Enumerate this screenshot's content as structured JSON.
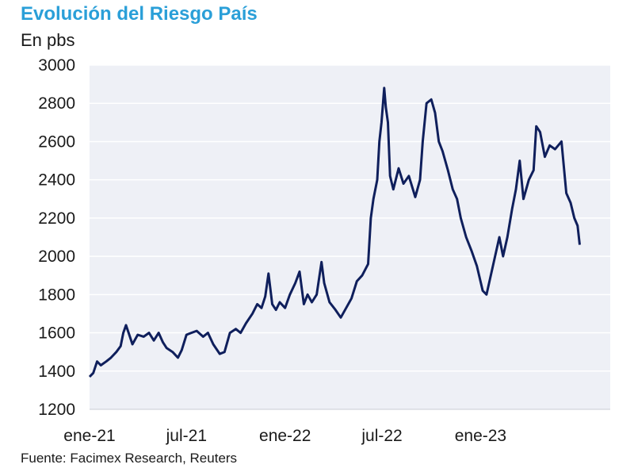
{
  "header": {
    "title": "Evolución del Riesgo País",
    "subtitle": "En pbs"
  },
  "footer": {
    "source": "Fuente: Facimex Research, Reuters"
  },
  "colors": {
    "title": "#2a9fd8",
    "line": "#0f1f5c",
    "plot_background": "#eef0f6",
    "gridline": "#ffffff"
  },
  "chart_data": {
    "type": "line",
    "title": "Evolución del Riesgo País",
    "subtitle": "En pbs",
    "xlabel": "",
    "ylabel": "",
    "ylim": [
      1200,
      3000
    ],
    "yticks": [
      1200,
      1400,
      1600,
      1800,
      2000,
      2200,
      2400,
      2600,
      2800,
      3000
    ],
    "xticks": [
      {
        "label": "ene-21",
        "date": "2021-01-01"
      },
      {
        "label": "jul-21",
        "date": "2021-07-01"
      },
      {
        "label": "ene-22",
        "date": "2022-01-01"
      },
      {
        "label": "jul-22",
        "date": "2022-07-01"
      },
      {
        "label": "ene-23",
        "date": "2023-01-01"
      }
    ],
    "xlim": [
      "2021-01-01",
      "2023-08-31"
    ],
    "grid": true,
    "legend": "none",
    "series": [
      {
        "name": "",
        "points": [
          [
            "2021-01-01",
            1370
          ],
          [
            "2021-01-08",
            1390
          ],
          [
            "2021-01-15",
            1450
          ],
          [
            "2021-01-22",
            1430
          ],
          [
            "2021-02-01",
            1450
          ],
          [
            "2021-02-10",
            1470
          ],
          [
            "2021-02-20",
            1500
          ],
          [
            "2021-02-28",
            1530
          ],
          [
            "2021-03-05",
            1600
          ],
          [
            "2021-03-10",
            1640
          ],
          [
            "2021-03-15",
            1600
          ],
          [
            "2021-03-22",
            1540
          ],
          [
            "2021-04-01",
            1590
          ],
          [
            "2021-04-12",
            1580
          ],
          [
            "2021-04-22",
            1600
          ],
          [
            "2021-05-01",
            1560
          ],
          [
            "2021-05-10",
            1600
          ],
          [
            "2021-05-18",
            1550
          ],
          [
            "2021-05-25",
            1520
          ],
          [
            "2021-06-05",
            1500
          ],
          [
            "2021-06-15",
            1470
          ],
          [
            "2021-06-22",
            1510
          ],
          [
            "2021-07-01",
            1590
          ],
          [
            "2021-07-10",
            1600
          ],
          [
            "2021-07-20",
            1610
          ],
          [
            "2021-08-01",
            1580
          ],
          [
            "2021-08-10",
            1600
          ],
          [
            "2021-08-20",
            1540
          ],
          [
            "2021-09-01",
            1490
          ],
          [
            "2021-09-10",
            1500
          ],
          [
            "2021-09-20",
            1600
          ],
          [
            "2021-10-01",
            1620
          ],
          [
            "2021-10-10",
            1600
          ],
          [
            "2021-10-20",
            1650
          ],
          [
            "2021-11-01",
            1700
          ],
          [
            "2021-11-10",
            1750
          ],
          [
            "2021-11-18",
            1730
          ],
          [
            "2021-11-25",
            1790
          ],
          [
            "2021-12-01",
            1910
          ],
          [
            "2021-12-08",
            1750
          ],
          [
            "2021-12-15",
            1720
          ],
          [
            "2021-12-22",
            1760
          ],
          [
            "2022-01-01",
            1730
          ],
          [
            "2022-01-10",
            1800
          ],
          [
            "2022-01-20",
            1860
          ],
          [
            "2022-01-28",
            1920
          ],
          [
            "2022-02-05",
            1750
          ],
          [
            "2022-02-12",
            1800
          ],
          [
            "2022-02-20",
            1760
          ],
          [
            "2022-03-01",
            1800
          ],
          [
            "2022-03-10",
            1970
          ],
          [
            "2022-03-15",
            1860
          ],
          [
            "2022-03-25",
            1760
          ],
          [
            "2022-04-05",
            1720
          ],
          [
            "2022-04-15",
            1680
          ],
          [
            "2022-04-25",
            1730
          ],
          [
            "2022-05-05",
            1780
          ],
          [
            "2022-05-15",
            1870
          ],
          [
            "2022-05-25",
            1900
          ],
          [
            "2022-06-05",
            1960
          ],
          [
            "2022-06-10",
            2200
          ],
          [
            "2022-06-15",
            2300
          ],
          [
            "2022-06-22",
            2400
          ],
          [
            "2022-06-26",
            2600
          ],
          [
            "2022-06-30",
            2700
          ],
          [
            "2022-07-05",
            2880
          ],
          [
            "2022-07-08",
            2780
          ],
          [
            "2022-07-12",
            2700
          ],
          [
            "2022-07-16",
            2420
          ],
          [
            "2022-07-22",
            2350
          ],
          [
            "2022-08-01",
            2460
          ],
          [
            "2022-08-10",
            2380
          ],
          [
            "2022-08-20",
            2420
          ],
          [
            "2022-09-01",
            2310
          ],
          [
            "2022-09-10",
            2400
          ],
          [
            "2022-09-15",
            2600
          ],
          [
            "2022-09-22",
            2800
          ],
          [
            "2022-10-01",
            2820
          ],
          [
            "2022-10-08",
            2750
          ],
          [
            "2022-10-15",
            2600
          ],
          [
            "2022-10-22",
            2550
          ],
          [
            "2022-11-01",
            2450
          ],
          [
            "2022-11-10",
            2350
          ],
          [
            "2022-11-18",
            2300
          ],
          [
            "2022-11-25",
            2200
          ],
          [
            "2022-12-05",
            2100
          ],
          [
            "2022-12-15",
            2030
          ],
          [
            "2022-12-25",
            1950
          ],
          [
            "2023-01-05",
            1820
          ],
          [
            "2023-01-12",
            1800
          ],
          [
            "2023-01-20",
            1900
          ],
          [
            "2023-01-28",
            2000
          ],
          [
            "2023-02-05",
            2100
          ],
          [
            "2023-02-12",
            2000
          ],
          [
            "2023-02-20",
            2100
          ],
          [
            "2023-03-01",
            2250
          ],
          [
            "2023-03-08",
            2350
          ],
          [
            "2023-03-15",
            2500
          ],
          [
            "2023-03-22",
            2300
          ],
          [
            "2023-04-01",
            2400
          ],
          [
            "2023-04-10",
            2450
          ],
          [
            "2023-04-15",
            2680
          ],
          [
            "2023-04-22",
            2650
          ],
          [
            "2023-05-01",
            2520
          ],
          [
            "2023-05-10",
            2580
          ],
          [
            "2023-05-20",
            2560
          ],
          [
            "2023-06-01",
            2600
          ],
          [
            "2023-06-10",
            2330
          ],
          [
            "2023-06-18",
            2280
          ],
          [
            "2023-06-25",
            2200
          ],
          [
            "2023-07-01",
            2160
          ],
          [
            "2023-07-05",
            2060
          ]
        ]
      }
    ]
  }
}
